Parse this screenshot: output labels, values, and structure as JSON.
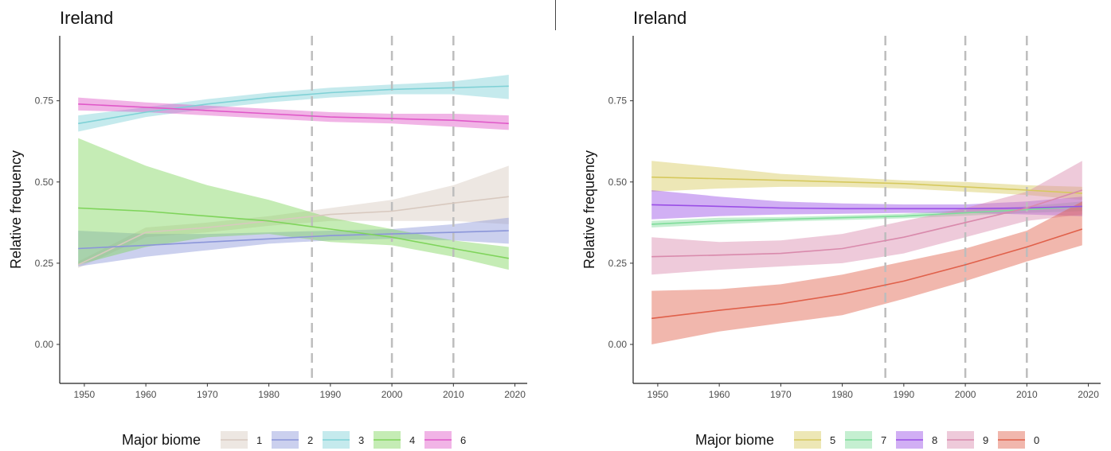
{
  "chart_data": [
    {
      "type": "line",
      "title": "Ireland",
      "xlabel": "",
      "ylabel": "Relative frequency",
      "xlim": [
        1946,
        2022
      ],
      "ylim": [
        -0.12,
        0.95
      ],
      "xticks": [
        1950,
        1960,
        1970,
        1980,
        1990,
        2000,
        2010,
        2020
      ],
      "yticks": [
        0.0,
        0.25,
        0.5,
        0.75
      ],
      "ytick_labels": [
        "0.00",
        "0.25",
        "0.50",
        "0.75"
      ],
      "vlines": [
        1987,
        2000,
        2010
      ],
      "grid": false,
      "legend": {
        "title": "Major biome",
        "placement": "bottom"
      },
      "series": [
        {
          "name": "1",
          "color": "#d8c9bf",
          "x": [
            1949,
            1960,
            1970,
            1980,
            1990,
            2000,
            2010,
            2019
          ],
          "values": [
            0.245,
            0.345,
            0.36,
            0.38,
            0.4,
            0.41,
            0.435,
            0.455
          ],
          "lower": [
            0.235,
            0.33,
            0.345,
            0.365,
            0.38,
            0.38,
            0.38,
            0.37
          ],
          "upper": [
            0.255,
            0.36,
            0.375,
            0.395,
            0.42,
            0.445,
            0.49,
            0.55
          ]
        },
        {
          "name": "2",
          "color": "#8b96d9",
          "x": [
            1949,
            1960,
            1970,
            1980,
            1990,
            2000,
            2010,
            2019
          ],
          "values": [
            0.295,
            0.305,
            0.315,
            0.325,
            0.335,
            0.34,
            0.345,
            0.35
          ],
          "lower": [
            0.24,
            0.27,
            0.29,
            0.31,
            0.32,
            0.325,
            0.32,
            0.31
          ],
          "upper": [
            0.35,
            0.34,
            0.34,
            0.345,
            0.35,
            0.355,
            0.37,
            0.39
          ]
        },
        {
          "name": "3",
          "color": "#7fd1d6",
          "x": [
            1949,
            1960,
            1970,
            1980,
            1990,
            2000,
            2010,
            2019
          ],
          "values": [
            0.68,
            0.715,
            0.74,
            0.76,
            0.775,
            0.785,
            0.79,
            0.795
          ],
          "lower": [
            0.655,
            0.7,
            0.725,
            0.745,
            0.76,
            0.77,
            0.77,
            0.755
          ],
          "upper": [
            0.705,
            0.73,
            0.755,
            0.775,
            0.79,
            0.8,
            0.81,
            0.83
          ]
        },
        {
          "name": "4",
          "color": "#7fd45b",
          "x": [
            1949,
            1960,
            1970,
            1980,
            1990,
            2000,
            2010,
            2019
          ],
          "values": [
            0.42,
            0.41,
            0.395,
            0.38,
            0.355,
            0.33,
            0.295,
            0.265
          ],
          "lower": [
            0.245,
            0.3,
            0.33,
            0.34,
            0.315,
            0.305,
            0.27,
            0.23
          ],
          "upper": [
            0.635,
            0.55,
            0.49,
            0.445,
            0.39,
            0.355,
            0.32,
            0.3
          ]
        },
        {
          "name": "6",
          "color": "#e058c8",
          "x": [
            1949,
            1960,
            1970,
            1980,
            1990,
            2000,
            2010,
            2019
          ],
          "values": [
            0.74,
            0.73,
            0.72,
            0.71,
            0.7,
            0.695,
            0.69,
            0.68
          ],
          "lower": [
            0.72,
            0.715,
            0.705,
            0.695,
            0.685,
            0.68,
            0.67,
            0.66
          ],
          "upper": [
            0.76,
            0.745,
            0.735,
            0.725,
            0.715,
            0.71,
            0.71,
            0.705
          ]
        }
      ]
    },
    {
      "type": "line",
      "title": "Ireland",
      "xlabel": "",
      "ylabel": "Relative frequency",
      "xlim": [
        1946,
        2022
      ],
      "ylim": [
        -0.12,
        0.95
      ],
      "xticks": [
        1950,
        1960,
        1970,
        1980,
        1990,
        2000,
        2010,
        2020
      ],
      "yticks": [
        0.0,
        0.25,
        0.5,
        0.75
      ],
      "ytick_labels": [
        "0.00",
        "0.25",
        "0.50",
        "0.75"
      ],
      "vlines": [
        1987,
        2000,
        2010
      ],
      "grid": false,
      "legend": {
        "title": "Major biome",
        "placement": "bottom"
      },
      "series": [
        {
          "name": "5",
          "color": "#d6c95e",
          "x": [
            1949,
            1960,
            1970,
            1980,
            1990,
            2000,
            2010,
            2019
          ],
          "values": [
            0.515,
            0.51,
            0.505,
            0.5,
            0.495,
            0.485,
            0.475,
            0.465
          ],
          "lower": [
            0.47,
            0.48,
            0.485,
            0.485,
            0.48,
            0.47,
            0.46,
            0.445
          ],
          "upper": [
            0.565,
            0.545,
            0.525,
            0.515,
            0.505,
            0.5,
            0.49,
            0.485
          ]
        },
        {
          "name": "7",
          "color": "#7fdc9a",
          "x": [
            1949,
            1960,
            1970,
            1980,
            1990,
            2000,
            2010,
            2019
          ],
          "values": [
            0.37,
            0.38,
            0.385,
            0.39,
            0.395,
            0.405,
            0.415,
            0.425
          ],
          "lower": [
            0.36,
            0.37,
            0.378,
            0.383,
            0.388,
            0.396,
            0.405,
            0.41
          ],
          "upper": [
            0.38,
            0.39,
            0.392,
            0.397,
            0.402,
            0.414,
            0.425,
            0.44
          ]
        },
        {
          "name": "8",
          "color": "#9a4ee6",
          "x": [
            1949,
            1960,
            1970,
            1980,
            1990,
            2000,
            2010,
            2019
          ],
          "values": [
            0.43,
            0.425,
            0.42,
            0.418,
            0.418,
            0.418,
            0.42,
            0.425
          ],
          "lower": [
            0.385,
            0.395,
            0.4,
            0.402,
            0.405,
            0.405,
            0.4,
            0.395
          ],
          "upper": [
            0.475,
            0.455,
            0.44,
            0.434,
            0.431,
            0.431,
            0.44,
            0.455
          ]
        },
        {
          "name": "9",
          "color": "#d98aac",
          "x": [
            1949,
            1960,
            1970,
            1980,
            1990,
            2000,
            2010,
            2019
          ],
          "values": [
            0.27,
            0.275,
            0.28,
            0.295,
            0.33,
            0.375,
            0.42,
            0.475
          ],
          "lower": [
            0.215,
            0.23,
            0.24,
            0.25,
            0.28,
            0.33,
            0.38,
            0.4
          ],
          "upper": [
            0.33,
            0.315,
            0.32,
            0.34,
            0.38,
            0.42,
            0.47,
            0.565
          ]
        },
        {
          "name": "0",
          "color": "#e0604a",
          "x": [
            1949,
            1960,
            1970,
            1980,
            1990,
            2000,
            2010,
            2019
          ],
          "values": [
            0.08,
            0.105,
            0.125,
            0.155,
            0.195,
            0.245,
            0.3,
            0.355
          ],
          "lower": [
            0.0,
            0.04,
            0.065,
            0.09,
            0.14,
            0.195,
            0.255,
            0.305
          ],
          "upper": [
            0.165,
            0.17,
            0.185,
            0.215,
            0.255,
            0.295,
            0.35,
            0.44
          ]
        }
      ]
    }
  ]
}
